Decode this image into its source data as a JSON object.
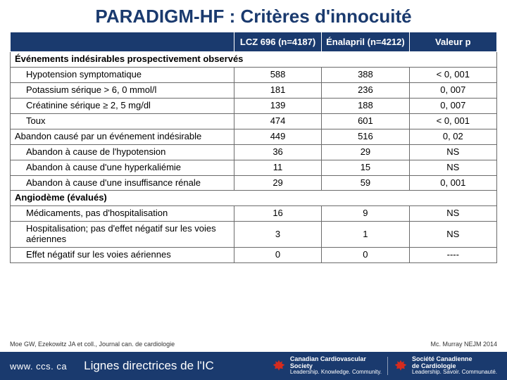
{
  "title": "PARADIGM-HF : Critères d'innocuité",
  "colors": {
    "brand": "#1a3a6e",
    "border": "#6b6b6b",
    "text": "#000000",
    "white": "#ffffff"
  },
  "table": {
    "headers": [
      "",
      "LCZ 696 (n=4187)",
      "Énalapril (n=4212)",
      "Valeur p"
    ],
    "sections": [
      {
        "type": "section",
        "label": "Événements indésirables prospectivement observés"
      },
      {
        "type": "row",
        "indent": 1,
        "label": "Hypotension symptomatique",
        "v1": "588",
        "v2": "388",
        "p": "< 0, 001"
      },
      {
        "type": "row",
        "indent": 1,
        "label": "Potassium sérique > 6, 0 mmol/l",
        "v1": "181",
        "v2": "236",
        "p": "0, 007"
      },
      {
        "type": "row",
        "indent": 1,
        "label": "Créatinine sérique ≥ 2, 5 mg/dl",
        "v1": "139",
        "v2": "188",
        "p": "0, 007"
      },
      {
        "type": "row",
        "indent": 1,
        "label": "Toux",
        "v1": "474",
        "v2": "601",
        "p": "< 0, 001"
      },
      {
        "type": "row",
        "indent": 0,
        "label": "Abandon causé par un événement indésirable",
        "v1": "449",
        "v2": "516",
        "p": "0, 02"
      },
      {
        "type": "row",
        "indent": 1,
        "label": "Abandon à cause de l'hypotension",
        "v1": "36",
        "v2": "29",
        "p": "NS"
      },
      {
        "type": "row",
        "indent": 1,
        "label": "Abandon à cause d'une hyperkaliémie",
        "v1": "11",
        "v2": "15",
        "p": "NS"
      },
      {
        "type": "row",
        "indent": 1,
        "label": "Abandon à cause d'une insuffisance rénale",
        "v1": "29",
        "v2": "59",
        "p": "0, 001"
      },
      {
        "type": "section",
        "label": "Angiodème (évalués)"
      },
      {
        "type": "row",
        "indent": 1,
        "label": "Médicaments, pas d'hospitalisation",
        "v1": "16",
        "v2": "9",
        "p": "NS"
      },
      {
        "type": "row",
        "indent": 1,
        "label": "Hospitalisation; pas d'effet négatif sur les voies aériennes",
        "v1": "3",
        "v2": "1",
        "p": "NS"
      },
      {
        "type": "row",
        "indent": 1,
        "label": "Effet négatif sur les voies aériennes",
        "v1": "0",
        "v2": "0",
        "p": "----"
      }
    ]
  },
  "cite_left": "Moe GW, Ezekowitz JA et coll., Journal can. de cardiologie",
  "cite_right": "Mc. Murray NEJM 2014",
  "footer": {
    "url": "www. ccs. ca",
    "guide": "Lignes directrices de l'IC",
    "logo1_line1": "Canadian Cardiovascular",
    "logo1_line2": "Society",
    "logo1_tag": "Leadership. Knowledge. Community.",
    "logo2_line1": "Société Canadienne",
    "logo2_line2": "de Cardiologie",
    "logo2_tag": "Leadership. Savoir. Communauté."
  }
}
